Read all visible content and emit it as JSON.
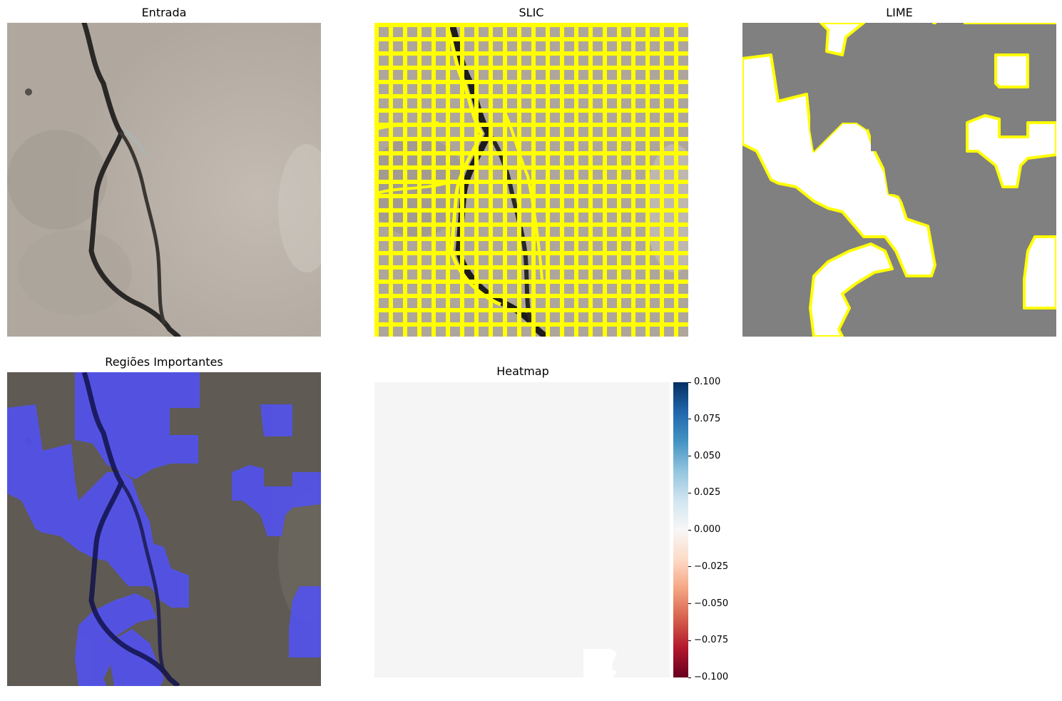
{
  "figure": {
    "panels": [
      {
        "title": "Entrada"
      },
      {
        "title": "SLIC"
      },
      {
        "title": "LIME"
      },
      {
        "title": "Regiões Importantes"
      },
      {
        "title": "Heatmap"
      }
    ],
    "heatmap": {
      "colormap": "RdBu",
      "colorbar_ticks": [
        "0.100",
        "0.075",
        "0.050",
        "0.025",
        "0.000",
        "−0.025",
        "−0.050",
        "−0.075",
        "−0.100"
      ],
      "colorbar_range": [
        -0.1,
        0.1
      ]
    },
    "colors": {
      "boundary": "#ffff00",
      "mask_gray": "#808080",
      "highlight": "#5050ff",
      "concrete": "#b3aba1",
      "crack": "#222222",
      "heatmap_fill": "#f5f5f5"
    }
  }
}
